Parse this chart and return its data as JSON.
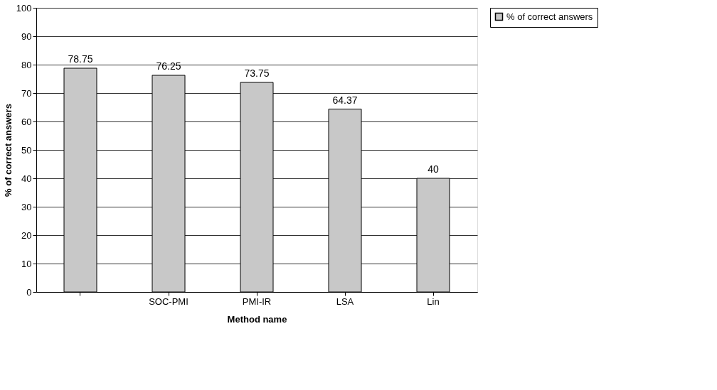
{
  "chart_data": {
    "type": "bar",
    "xlabel": "Method name",
    "ylabel": "% of correct answers",
    "categories": [
      null,
      "SOC-PMI",
      "PMI-IR",
      "LSA",
      "Lin"
    ],
    "series": [
      {
        "name": "% of correct answers",
        "color": "#c8c8c8",
        "values": [
          78.75,
          76.25,
          73.75,
          64.37,
          40
        ]
      }
    ],
    "ylim": [
      0,
      100
    ],
    "yticks": [
      0,
      10,
      20,
      30,
      40,
      50,
      60,
      70,
      80,
      90,
      100
    ],
    "grid": "y",
    "legend": "right",
    "data_labels": true
  }
}
